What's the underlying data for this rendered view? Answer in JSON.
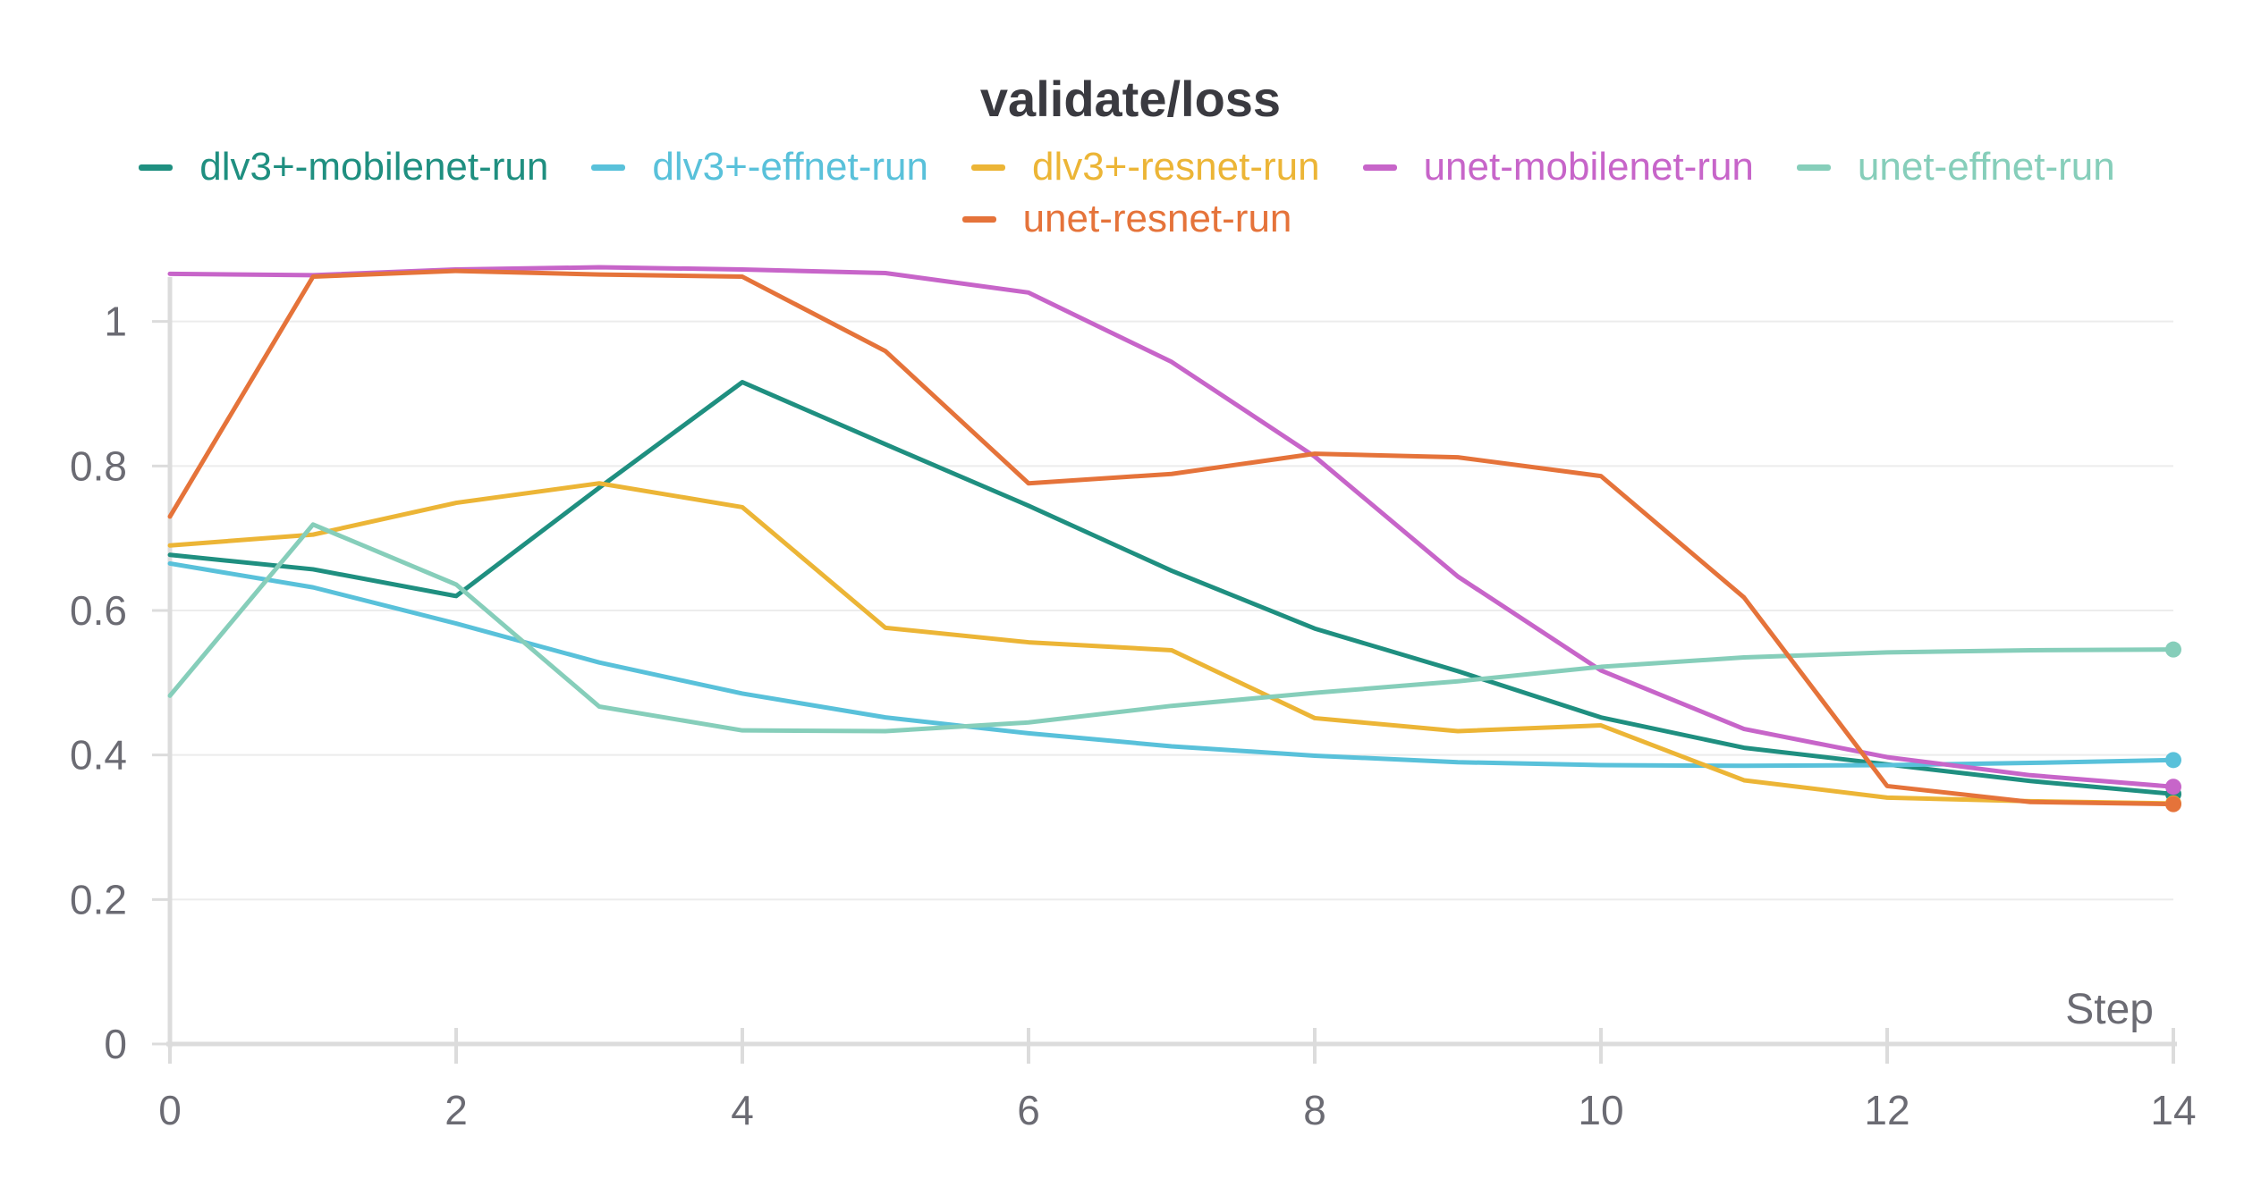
{
  "chart_data": {
    "type": "line",
    "title": "validate/loss",
    "xlabel": "Step",
    "ylabel": "",
    "xlim": [
      0,
      14
    ],
    "ylim": [
      0,
      1.08
    ],
    "xticks": [
      0,
      2,
      4,
      6,
      8,
      10,
      12,
      14
    ],
    "yticks": [
      0,
      0.2,
      0.4,
      0.6,
      0.8,
      1
    ],
    "ytick_labels": [
      "0",
      "0.2",
      "0.4",
      "0.6",
      "0.8",
      "1"
    ],
    "grid": true,
    "legend_position": "top-center",
    "x": [
      0,
      1,
      2,
      3,
      4,
      5,
      6,
      7,
      8,
      9,
      10,
      11,
      12,
      13,
      14
    ],
    "series": [
      {
        "name": "dlv3+-mobilenet-run",
        "color": "#1f8f80",
        "values": [
          0.677,
          0.657,
          0.62,
          0.77,
          0.916,
          0.83,
          0.745,
          0.655,
          0.575,
          0.516,
          0.452,
          0.41,
          0.387,
          0.364,
          0.346
        ]
      },
      {
        "name": "dlv3+-effnet-run",
        "color": "#59c1da",
        "values": [
          0.665,
          0.632,
          0.582,
          0.528,
          0.485,
          0.452,
          0.43,
          0.412,
          0.399,
          0.39,
          0.386,
          0.385,
          0.386,
          0.389,
          0.393
        ]
      },
      {
        "name": "dlv3+-resnet-run",
        "color": "#ecb536",
        "values": [
          0.69,
          0.705,
          0.749,
          0.776,
          0.743,
          0.576,
          0.556,
          0.545,
          0.451,
          0.433,
          0.441,
          0.365,
          0.341,
          0.336,
          0.333
        ]
      },
      {
        "name": "unet-mobilenet-run",
        "color": "#c765c9",
        "values": [
          1.066,
          1.064,
          1.072,
          1.075,
          1.072,
          1.067,
          1.04,
          0.944,
          0.813,
          0.647,
          0.517,
          0.436,
          0.397,
          0.372,
          0.356
        ]
      },
      {
        "name": "unet-effnet-run",
        "color": "#86ceba",
        "values": [
          0.482,
          0.719,
          0.636,
          0.467,
          0.434,
          0.433,
          0.445,
          0.468,
          0.486,
          0.502,
          0.522,
          0.535,
          0.542,
          0.545,
          0.546
        ]
      },
      {
        "name": "unet-resnet-run",
        "color": "#e5733a",
        "values": [
          0.73,
          1.062,
          1.07,
          1.065,
          1.062,
          0.959,
          0.776,
          0.789,
          0.817,
          0.812,
          0.786,
          0.618,
          0.357,
          0.335,
          0.332
        ]
      }
    ]
  }
}
